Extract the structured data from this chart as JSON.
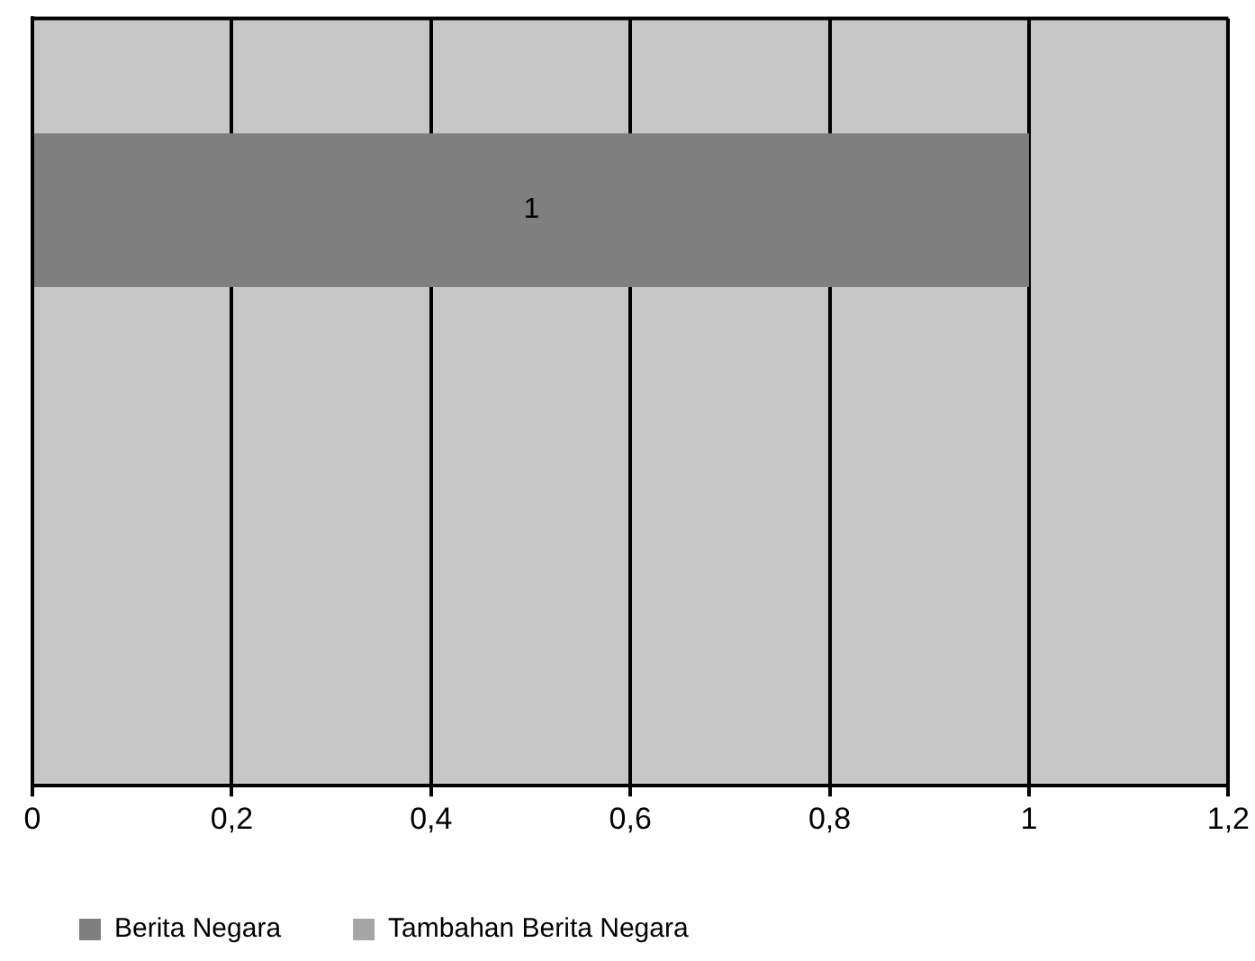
{
  "chart_data": {
    "type": "bar",
    "orientation": "horizontal",
    "stacked": true,
    "categories": [
      null,
      null
    ],
    "series": [
      {
        "name": "Berita Negara",
        "color": "#7f7f7f",
        "values": [
          1,
          null
        ]
      },
      {
        "name": "Tambahan Berita Negara",
        "color": "#a6a6a6",
        "values": [
          null,
          null
        ]
      }
    ],
    "xlim": [
      0,
      1.2
    ],
    "xticks": [
      0,
      {
        "value": 0.2,
        "label": "0,2"
      },
      {
        "value": 0.4,
        "label": "0,4"
      },
      {
        "value": 0.6,
        "label": "0,6"
      },
      {
        "value": 0.8,
        "label": "0,8"
      },
      1,
      {
        "value": 1.2,
        "label": "1,2"
      }
    ],
    "grid": "x",
    "legend": "bottom",
    "data_labels": true
  }
}
